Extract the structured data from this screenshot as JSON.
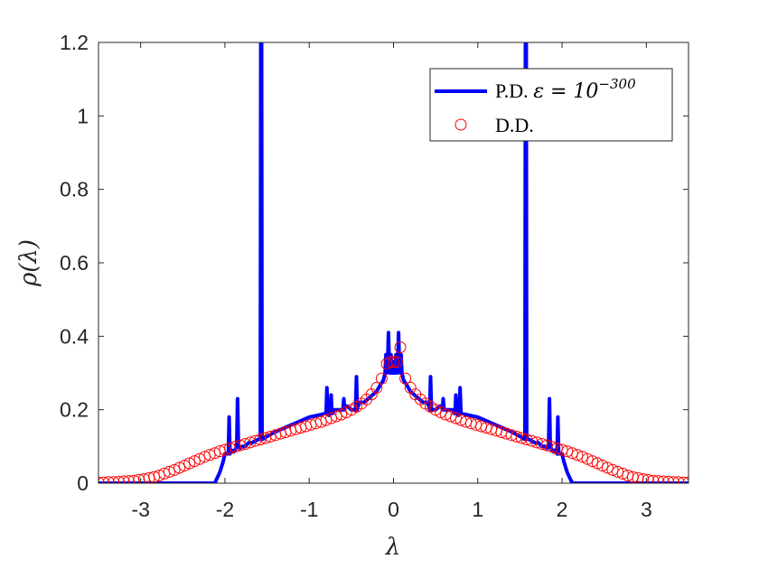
{
  "chart_data": {
    "type": "line",
    "xlabel": "λ",
    "ylabel": "ρ(λ)",
    "xlim": [
      -3.5,
      3.5
    ],
    "ylim": [
      0,
      1.2
    ],
    "xticks": [
      -3,
      -2,
      -1,
      0,
      1,
      2,
      3
    ],
    "xtick_labels": [
      "-3",
      "-2",
      "-1",
      "0",
      "1",
      "2",
      "3"
    ],
    "yticks": [
      0,
      0.2,
      0.4,
      0.6,
      0.8,
      1,
      1.2
    ],
    "ytick_labels": [
      "0",
      "0.2",
      "0.4",
      "0.6",
      "0.8",
      "1",
      "1.2"
    ],
    "grid": false,
    "legend_position": "top-right",
    "series": [
      {
        "name": "P.D. ε = 10^-300",
        "legend_text": "P.D. ",
        "legend_math": "ε = 10",
        "legend_sup": "−300",
        "style": "line",
        "color": "#0000ff",
        "x": [
          -3.5,
          -2.12,
          -2.06,
          -2.02,
          -2.0,
          -1.98,
          -1.96,
          -1.95,
          -1.94,
          -1.92,
          -1.9,
          -1.88,
          -1.86,
          -1.85,
          -1.84,
          -1.82,
          -1.8,
          -1.76,
          -1.72,
          -1.68,
          -1.64,
          -1.6,
          -1.58,
          -1.575,
          -1.565,
          -1.56,
          -1.55,
          -1.52,
          -1.48,
          -1.4,
          -1.3,
          -1.2,
          -1.1,
          -1.0,
          -0.9,
          -0.8,
          -0.79,
          -0.78,
          -0.77,
          -0.75,
          -0.74,
          -0.73,
          -0.72,
          -0.7,
          -0.65,
          -0.6,
          -0.59,
          -0.58,
          -0.57,
          -0.55,
          -0.5,
          -0.45,
          -0.44,
          -0.43,
          -0.42,
          -0.4,
          -0.35,
          -0.3,
          -0.25,
          -0.2,
          -0.15,
          -0.12,
          -0.1,
          -0.09,
          -0.08,
          -0.07,
          -0.06,
          -0.05,
          -0.04,
          -0.03,
          -0.02,
          -0.01,
          0,
          0.01,
          0.02,
          0.03,
          0.04,
          0.05,
          0.06,
          0.07,
          0.08,
          0.09,
          0.1,
          0.12,
          0.15,
          0.2,
          0.25,
          0.3,
          0.35,
          0.4,
          0.42,
          0.43,
          0.44,
          0.45,
          0.5,
          0.55,
          0.57,
          0.58,
          0.59,
          0.6,
          0.65,
          0.7,
          0.72,
          0.73,
          0.74,
          0.75,
          0.77,
          0.78,
          0.79,
          0.8,
          0.9,
          1.0,
          1.1,
          1.2,
          1.3,
          1.4,
          1.48,
          1.52,
          1.55,
          1.56,
          1.565,
          1.575,
          1.58,
          1.6,
          1.64,
          1.68,
          1.72,
          1.76,
          1.8,
          1.82,
          1.84,
          1.85,
          1.86,
          1.88,
          1.9,
          1.92,
          1.94,
          1.95,
          1.96,
          1.98,
          2.0,
          2.02,
          2.06,
          2.12,
          3.5
        ],
        "y": [
          0,
          0,
          0.03,
          0.06,
          0.08,
          0.08,
          0.08,
          0.18,
          0.08,
          0.09,
          0.085,
          0.09,
          0.1,
          0.23,
          0.1,
          0.095,
          0.1,
          0.1,
          0.11,
          0.11,
          0.115,
          0.12,
          0.12,
          1.2,
          1.2,
          0.12,
          0.12,
          0.125,
          0.13,
          0.14,
          0.15,
          0.16,
          0.17,
          0.18,
          0.185,
          0.19,
          0.26,
          0.19,
          0.185,
          0.19,
          0.24,
          0.19,
          0.19,
          0.2,
          0.2,
          0.2,
          0.23,
          0.2,
          0.21,
          0.21,
          0.2,
          0.2,
          0.29,
          0.2,
          0.21,
          0.22,
          0.22,
          0.23,
          0.24,
          0.25,
          0.27,
          0.28,
          0.3,
          0.35,
          0.3,
          0.32,
          0.41,
          0.33,
          0.3,
          0.35,
          0.32,
          0.3,
          0.33,
          0.3,
          0.32,
          0.35,
          0.3,
          0.33,
          0.41,
          0.32,
          0.3,
          0.35,
          0.3,
          0.28,
          0.27,
          0.25,
          0.24,
          0.23,
          0.22,
          0.22,
          0.21,
          0.2,
          0.29,
          0.2,
          0.2,
          0.21,
          0.21,
          0.2,
          0.23,
          0.2,
          0.2,
          0.2,
          0.19,
          0.19,
          0.24,
          0.19,
          0.185,
          0.19,
          0.26,
          0.19,
          0.185,
          0.18,
          0.17,
          0.16,
          0.15,
          0.14,
          0.13,
          0.125,
          0.12,
          0.12,
          1.2,
          1.2,
          0.12,
          0.12,
          0.115,
          0.11,
          0.11,
          0.1,
          0.1,
          0.095,
          0.1,
          0.23,
          0.1,
          0.09,
          0.085,
          0.09,
          0.08,
          0.18,
          0.08,
          0.08,
          0.08,
          0.06,
          0.03,
          0,
          0
        ]
      },
      {
        "name": "D.D.",
        "legend_text": "D.D.",
        "style": "markers",
        "marker": "open-circle",
        "color": "#ff0000",
        "x": [
          -3.5,
          -3.44,
          -3.38,
          -3.32,
          -3.26,
          -3.2,
          -3.14,
          -3.08,
          -3.02,
          -2.96,
          -2.9,
          -2.84,
          -2.78,
          -2.72,
          -2.66,
          -2.6,
          -2.54,
          -2.48,
          -2.42,
          -2.36,
          -2.3,
          -2.24,
          -2.18,
          -2.12,
          -2.06,
          -2.0,
          -1.94,
          -1.88,
          -1.82,
          -1.76,
          -1.7,
          -1.64,
          -1.58,
          -1.52,
          -1.46,
          -1.4,
          -1.34,
          -1.28,
          -1.22,
          -1.16,
          -1.1,
          -1.04,
          -0.98,
          -0.92,
          -0.86,
          -0.8,
          -0.74,
          -0.68,
          -0.62,
          -0.56,
          -0.5,
          -0.44,
          -0.38,
          -0.32,
          -0.26,
          -0.2,
          -0.14,
          -0.08,
          -0.04,
          0,
          0.04,
          0.08,
          0.14,
          0.2,
          0.26,
          0.32,
          0.38,
          0.44,
          0.5,
          0.56,
          0.62,
          0.68,
          0.74,
          0.8,
          0.86,
          0.92,
          0.98,
          1.04,
          1.1,
          1.16,
          1.22,
          1.28,
          1.34,
          1.4,
          1.46,
          1.52,
          1.58,
          1.64,
          1.7,
          1.76,
          1.82,
          1.88,
          1.94,
          2.0,
          2.06,
          2.12,
          2.18,
          2.24,
          2.3,
          2.36,
          2.42,
          2.48,
          2.54,
          2.6,
          2.66,
          2.72,
          2.78,
          2.84,
          2.9,
          2.96,
          3.02,
          3.08,
          3.14,
          3.2,
          3.26,
          3.32,
          3.38,
          3.44,
          3.5
        ],
        "y": [
          0.002,
          0.002,
          0.003,
          0.003,
          0.004,
          0.005,
          0.006,
          0.007,
          0.009,
          0.011,
          0.014,
          0.017,
          0.021,
          0.026,
          0.031,
          0.036,
          0.042,
          0.048,
          0.054,
          0.06,
          0.066,
          0.072,
          0.077,
          0.082,
          0.087,
          0.091,
          0.095,
          0.099,
          0.103,
          0.107,
          0.111,
          0.115,
          0.119,
          0.123,
          0.127,
          0.131,
          0.135,
          0.139,
          0.143,
          0.147,
          0.151,
          0.155,
          0.159,
          0.163,
          0.167,
          0.172,
          0.177,
          0.182,
          0.187,
          0.193,
          0.2,
          0.208,
          0.217,
          0.228,
          0.242,
          0.26,
          0.285,
          0.325,
          0.33,
          0.33,
          0.33,
          0.37,
          0.285,
          0.26,
          0.242,
          0.228,
          0.217,
          0.208,
          0.2,
          0.193,
          0.187,
          0.182,
          0.177,
          0.172,
          0.167,
          0.163,
          0.159,
          0.155,
          0.151,
          0.147,
          0.143,
          0.139,
          0.135,
          0.131,
          0.127,
          0.123,
          0.119,
          0.115,
          0.111,
          0.107,
          0.103,
          0.099,
          0.095,
          0.091,
          0.087,
          0.082,
          0.077,
          0.072,
          0.066,
          0.06,
          0.054,
          0.048,
          0.042,
          0.036,
          0.031,
          0.026,
          0.021,
          0.017,
          0.014,
          0.011,
          0.009,
          0.007,
          0.006,
          0.005,
          0.004,
          0.003,
          0.003,
          0.002,
          0.002
        ]
      }
    ]
  }
}
